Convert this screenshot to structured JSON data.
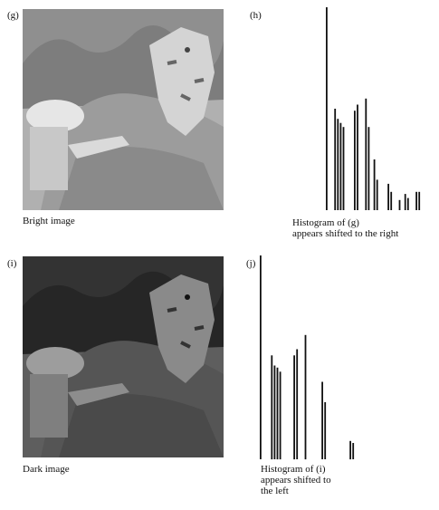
{
  "panels": {
    "g": {
      "letter": "(g)",
      "caption": "Bright image"
    },
    "h": {
      "letter": "(h)",
      "caption_line1": "Histogram of (g)",
      "caption_line2": "appears shifted to the right"
    },
    "i": {
      "letter": "(i)",
      "caption": "Dark image"
    },
    "j": {
      "letter": "(j)",
      "caption_line1": "Histogram of (i)",
      "caption_line2": "appears shifted to",
      "caption_line3": "the left"
    }
  },
  "chart_data": [
    {
      "type": "bar",
      "panel": "h",
      "title": "",
      "xlabel": "",
      "ylabel": "",
      "x": [
        0,
        1,
        2,
        3,
        4,
        5,
        6,
        7,
        8,
        9,
        10,
        11,
        12,
        13,
        14,
        15,
        16,
        17,
        18,
        19,
        20,
        21,
        22,
        23,
        24,
        25,
        26,
        27,
        28,
        29,
        30,
        31,
        32,
        33,
        34,
        35
      ],
      "values": [
        100,
        0,
        0,
        50,
        45,
        43,
        41,
        0,
        0,
        0,
        49,
        52,
        0,
        0,
        55,
        41,
        0,
        25,
        15,
        0,
        0,
        0,
        13,
        9,
        0,
        0,
        5,
        0,
        8,
        6,
        0,
        0,
        9,
        9,
        0,
        0
      ],
      "ylim": [
        0,
        100
      ]
    },
    {
      "type": "bar",
      "panel": "j",
      "title": "",
      "xlabel": "",
      "ylabel": "",
      "x": [
        0,
        1,
        2,
        3,
        4,
        5,
        6,
        7,
        8,
        9,
        10,
        11,
        12,
        13,
        14,
        15,
        16,
        17,
        18,
        19,
        20,
        21,
        22,
        23,
        24,
        25,
        26,
        27,
        28,
        29,
        30,
        31,
        32,
        33,
        34,
        35,
        36,
        37
      ],
      "values": [
        100,
        0,
        0,
        0,
        51,
        46,
        45,
        43,
        0,
        0,
        0,
        0,
        51,
        54,
        0,
        0,
        61,
        0,
        0,
        0,
        0,
        0,
        38,
        28,
        0,
        0,
        0,
        0,
        0,
        0,
        0,
        0,
        9,
        8,
        0,
        0,
        0,
        0
      ],
      "ylim": [
        0,
        100
      ]
    }
  ]
}
